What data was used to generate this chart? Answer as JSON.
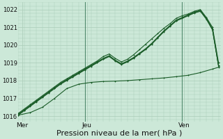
{
  "bg_color": "#cce8d8",
  "grid_color": "#aaccb8",
  "line_color": "#1a5c28",
  "xlabel": "Pression niveau de la mer( hPa )",
  "xlabel_fontsize": 8,
  "ylim": [
    1015.7,
    1022.4
  ],
  "xlim": [
    0,
    100
  ],
  "xtick_positions": [
    2,
    34,
    82
  ],
  "xtick_labels": [
    "Mer",
    "Jeu",
    "Ven"
  ],
  "ytick_positions": [
    1016,
    1017,
    1018,
    1019,
    1020,
    1021,
    1022
  ],
  "ytick_labels": [
    "1016",
    "1017",
    "1018",
    "1019",
    "1020",
    "1021",
    "1022"
  ],
  "line1_x": [
    0,
    3,
    6,
    9,
    12,
    15,
    18,
    21,
    24,
    27,
    30,
    33,
    36,
    39,
    42,
    45,
    48,
    51,
    54,
    57,
    60,
    63,
    66,
    69,
    72,
    75,
    78,
    81,
    84,
    87,
    90,
    93,
    96,
    99
  ],
  "line1_y": [
    1016.1,
    1016.35,
    1016.6,
    1016.85,
    1017.1,
    1017.35,
    1017.6,
    1017.85,
    1018.05,
    1018.25,
    1018.45,
    1018.65,
    1018.85,
    1019.05,
    1019.25,
    1019.4,
    1019.15,
    1018.95,
    1019.1,
    1019.3,
    1019.55,
    1019.8,
    1020.1,
    1020.45,
    1020.8,
    1021.1,
    1021.4,
    1021.55,
    1021.7,
    1021.85,
    1021.95,
    1021.5,
    1020.9,
    1018.85
  ],
  "line2_x": [
    0,
    3,
    6,
    9,
    12,
    15,
    18,
    21,
    24,
    27,
    30,
    33,
    36,
    39,
    42,
    45,
    48,
    51,
    54,
    57,
    60,
    63,
    66,
    69,
    72,
    75,
    78,
    81,
    84,
    87,
    90,
    93,
    96,
    99
  ],
  "line2_y": [
    1016.15,
    1016.4,
    1016.65,
    1016.9,
    1017.15,
    1017.4,
    1017.65,
    1017.9,
    1018.1,
    1018.3,
    1018.5,
    1018.7,
    1018.9,
    1019.1,
    1019.35,
    1019.5,
    1019.25,
    1019.05,
    1019.2,
    1019.45,
    1019.75,
    1020.05,
    1020.35,
    1020.65,
    1020.95,
    1021.2,
    1021.5,
    1021.65,
    1021.75,
    1021.9,
    1022.0,
    1021.55,
    1021.0,
    1019.0
  ],
  "line3_x": [
    0,
    3,
    6,
    9,
    12,
    15,
    18,
    21,
    24,
    27,
    30,
    33,
    36,
    39,
    42,
    45,
    48,
    51,
    54,
    57,
    60,
    63,
    66,
    69,
    72,
    75,
    78,
    81,
    84,
    87,
    90,
    93,
    96,
    99
  ],
  "line3_y": [
    1016.05,
    1016.3,
    1016.55,
    1016.8,
    1017.05,
    1017.3,
    1017.55,
    1017.8,
    1018.0,
    1018.2,
    1018.4,
    1018.6,
    1018.8,
    1019.0,
    1019.2,
    1019.35,
    1019.1,
    1018.9,
    1019.05,
    1019.25,
    1019.5,
    1019.75,
    1020.05,
    1020.4,
    1020.75,
    1021.05,
    1021.35,
    1021.5,
    1021.65,
    1021.8,
    1021.9,
    1021.45,
    1020.85,
    1018.8
  ],
  "line4_x": [
    0,
    3,
    6,
    9,
    12,
    15,
    18,
    21,
    24,
    27,
    30,
    33,
    36,
    39,
    42,
    45,
    48,
    51,
    54,
    57,
    60,
    63,
    66,
    69,
    72,
    75,
    78,
    81,
    84,
    87,
    90,
    93,
    96,
    99
  ],
  "line4_y": [
    1016.08,
    1016.33,
    1016.58,
    1016.83,
    1017.08,
    1017.33,
    1017.58,
    1017.83,
    1018.03,
    1018.23,
    1018.43,
    1018.63,
    1018.83,
    1019.03,
    1019.23,
    1019.38,
    1019.13,
    1018.93,
    1019.08,
    1019.28,
    1019.53,
    1019.78,
    1020.08,
    1020.43,
    1020.78,
    1021.08,
    1021.38,
    1021.53,
    1021.68,
    1021.83,
    1021.93,
    1021.48,
    1020.88,
    1018.83
  ],
  "line5_x": [
    0,
    6,
    12,
    18,
    24,
    30,
    36,
    42,
    48,
    54,
    60,
    66,
    72,
    78,
    84,
    90,
    96,
    99
  ],
  "line5_y": [
    1016.05,
    1016.2,
    1016.5,
    1017.0,
    1017.55,
    1017.8,
    1017.9,
    1017.95,
    1017.97,
    1018.0,
    1018.05,
    1018.1,
    1018.15,
    1018.22,
    1018.3,
    1018.45,
    1018.65,
    1018.75
  ],
  "vline_positions": [
    33,
    81
  ],
  "vline_color": "#2d6e4e"
}
